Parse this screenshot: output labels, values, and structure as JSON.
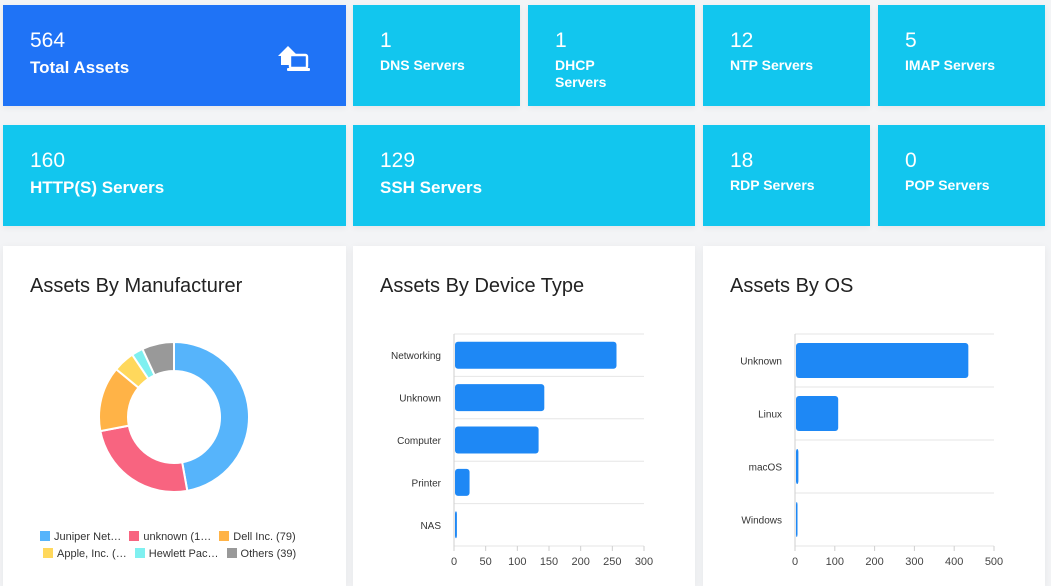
{
  "stats": {
    "total_assets": {
      "value": "564",
      "label": "Total Assets"
    },
    "dns": {
      "value": "1",
      "label": "DNS Servers"
    },
    "dhcp": {
      "value": "1",
      "label": "DHCP Servers"
    },
    "ntp": {
      "value": "12",
      "label": "NTP Servers"
    },
    "imap": {
      "value": "5",
      "label": "IMAP Servers"
    },
    "http": {
      "value": "160",
      "label": "HTTP(S) Servers"
    },
    "ssh": {
      "value": "129",
      "label": "SSH Servers"
    },
    "rdp": {
      "value": "18",
      "label": "RDP Servers"
    },
    "pop": {
      "value": "0",
      "label": "POP Servers"
    }
  },
  "icons": {
    "total_assets": "home-devices-icon"
  },
  "colors": {
    "primary": "#1f73f6",
    "info": "#12c6ee",
    "bar": "#1e88f5"
  },
  "cards": {
    "manufacturer": {
      "title": "Assets By Manufacturer"
    },
    "device_type": {
      "title": "Assets By Device Type"
    },
    "os": {
      "title": "Assets By OS"
    }
  },
  "chart_data": [
    {
      "type": "pie",
      "title": "Assets By Manufacturer",
      "donut": true,
      "categories": [
        "Juniper Networks",
        "unknown",
        "Dell Inc.",
        "Apple, Inc.",
        "Hewlett Packard",
        "Others"
      ],
      "values": [
        266,
        140,
        79,
        26,
        14,
        39
      ],
      "colors": [
        "#56b4fb",
        "#f86480",
        "#ffb347",
        "#ffd85c",
        "#7ff0f0",
        "#999999"
      ],
      "legend_labels": [
        "Juniper Net…",
        "unknown (1…",
        "Dell Inc. (79)",
        "Apple, Inc. (…",
        "Hewlett Pac…",
        "Others (39)"
      ]
    },
    {
      "type": "bar",
      "orientation": "horizontal",
      "title": "Assets By Device Type",
      "categories": [
        "Networking",
        "Unknown",
        "Computer",
        "Printer",
        "NAS"
      ],
      "values": [
        255,
        141,
        132,
        23,
        3
      ],
      "xlim": [
        0,
        300
      ],
      "xticks": [
        0,
        50,
        100,
        150,
        200,
        250,
        300
      ]
    },
    {
      "type": "bar",
      "orientation": "horizontal",
      "title": "Assets By OS",
      "categories": [
        "Unknown",
        "Linux",
        "macOS",
        "Windows"
      ],
      "values": [
        433,
        106,
        6,
        2
      ],
      "xlim": [
        0,
        500
      ],
      "xticks": [
        0,
        100,
        200,
        300,
        400,
        500
      ]
    }
  ]
}
